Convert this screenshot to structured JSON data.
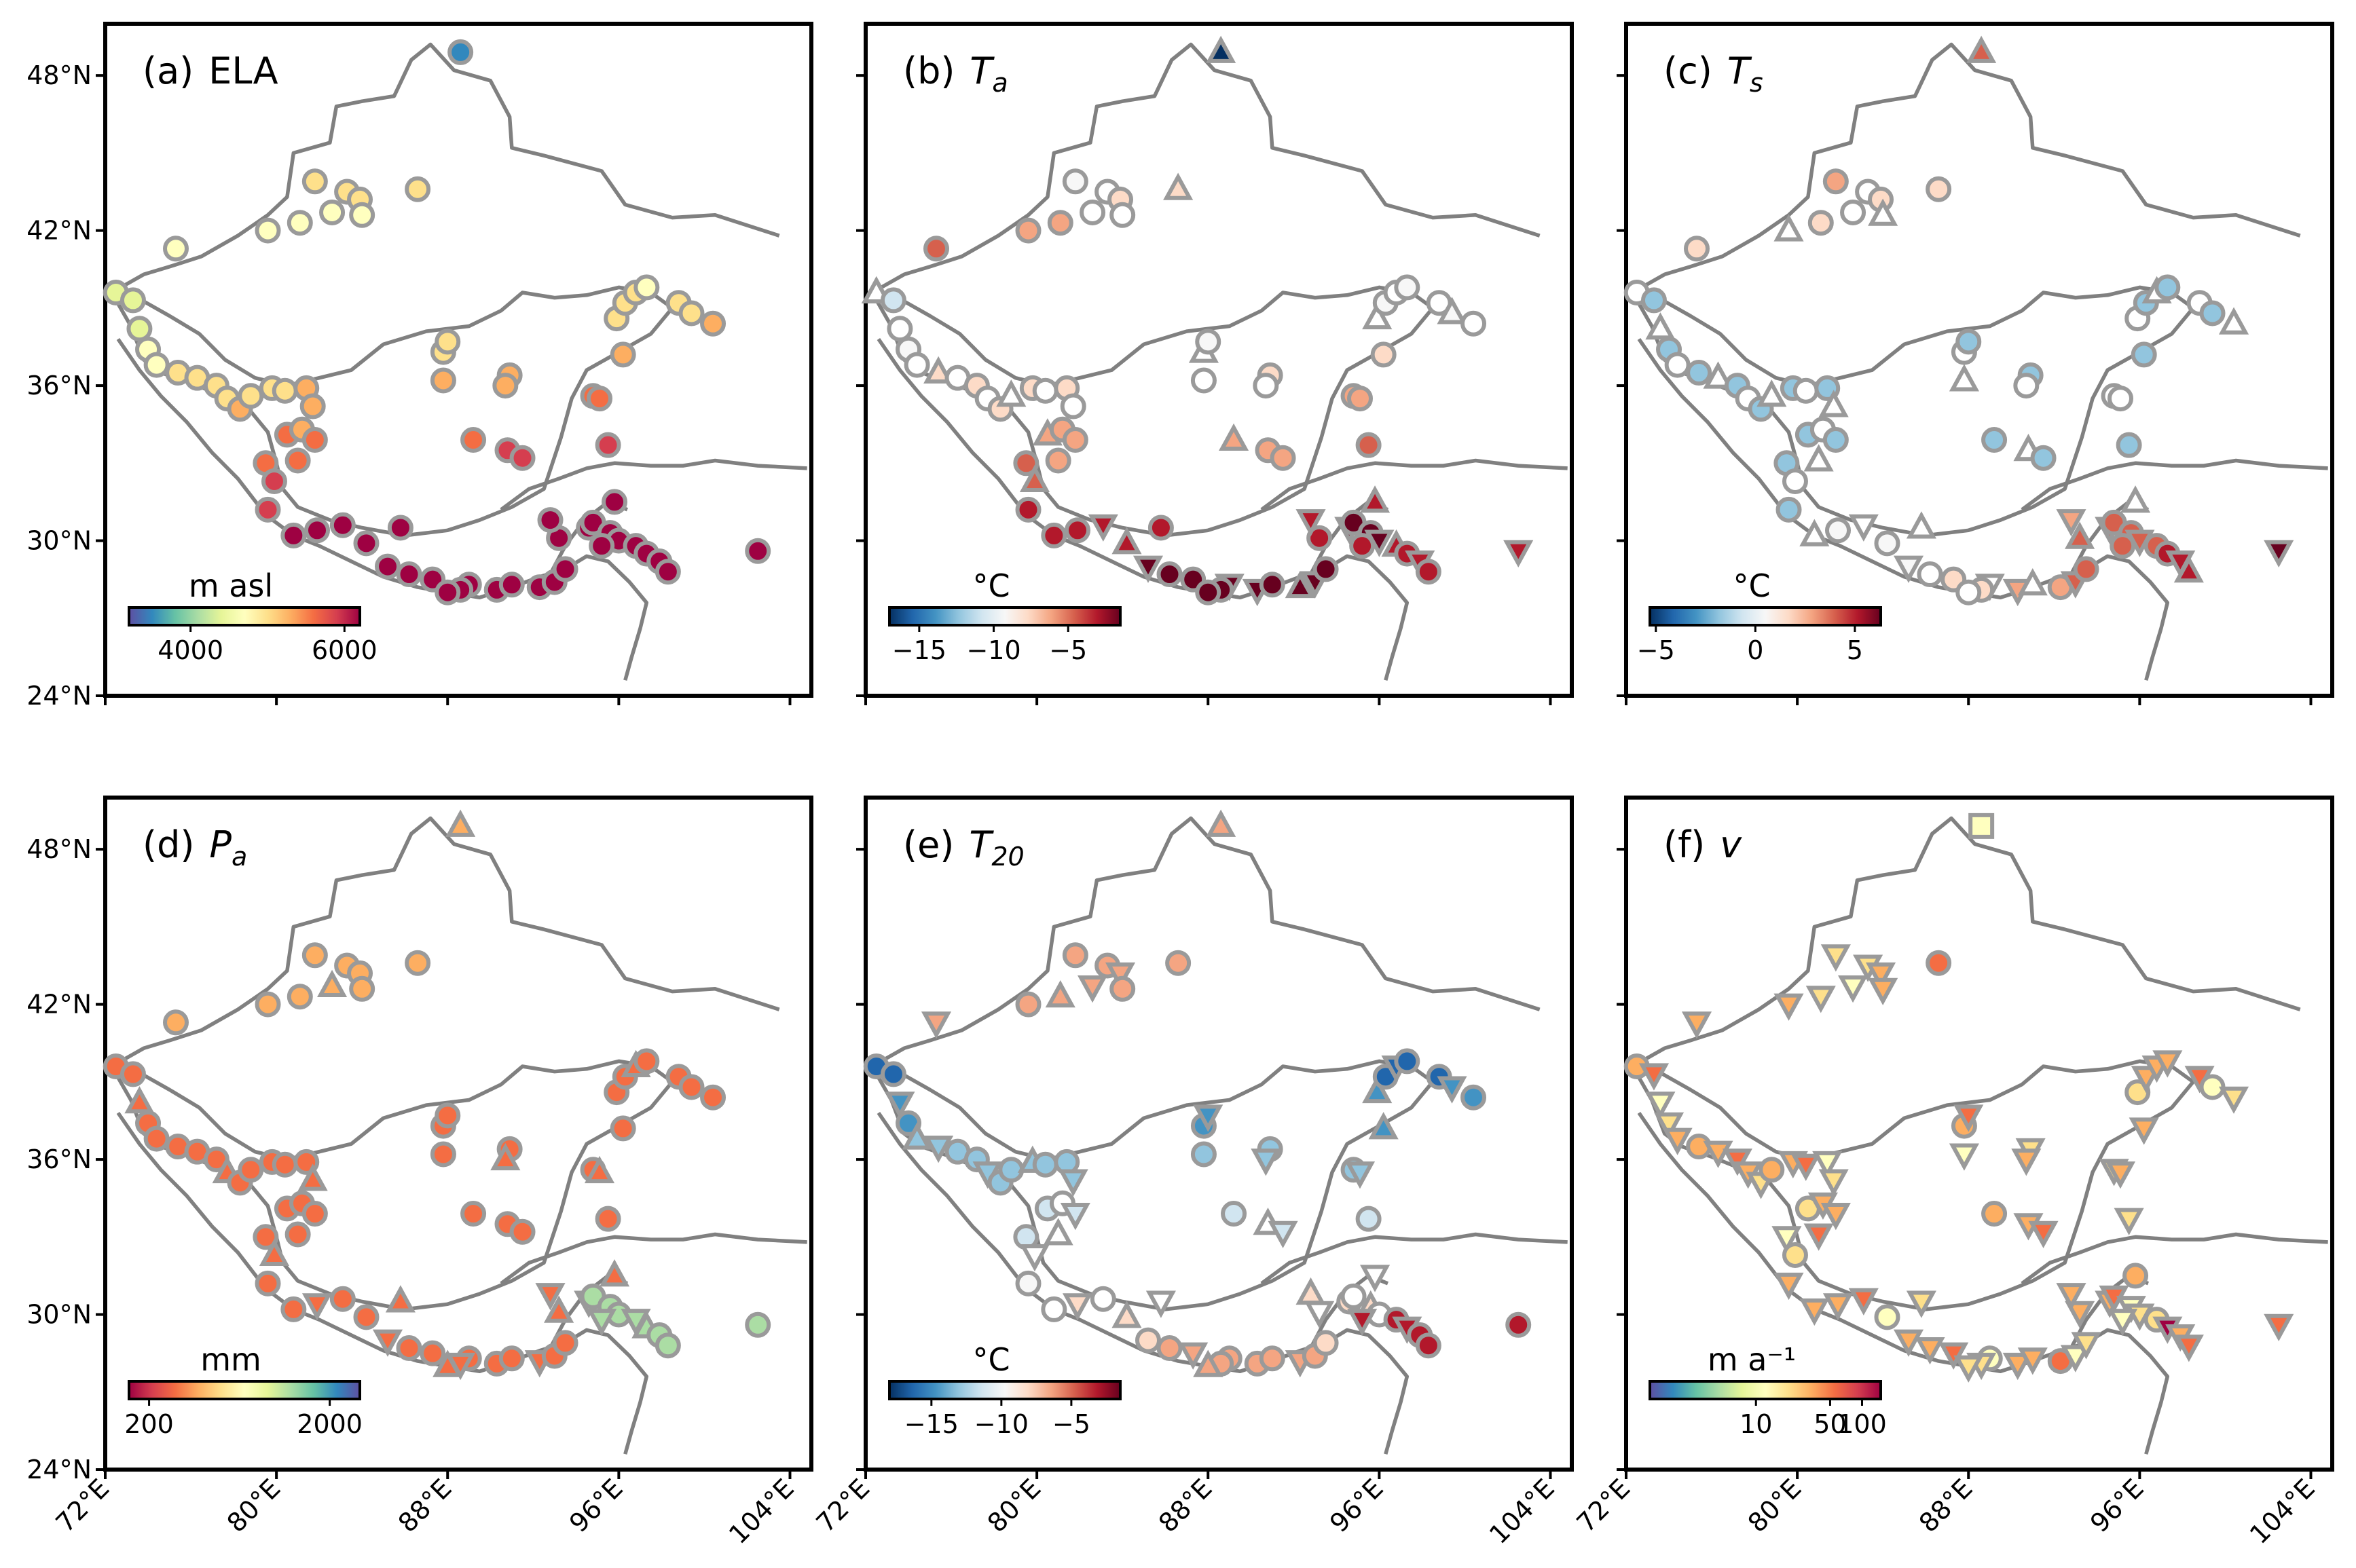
{
  "figure": {
    "x_ticks": [
      "72°E",
      "80°E",
      "88°E",
      "96°E",
      "104°E"
    ],
    "y_ticks": [
      "48°N",
      "42°N",
      "36°N",
      "30°N",
      "24°N"
    ],
    "x_values": [
      72,
      80,
      88,
      96,
      104
    ],
    "y_values": [
      48,
      42,
      36,
      30,
      24
    ],
    "lon_range": [
      72,
      105
    ],
    "lat_range": [
      24,
      50
    ]
  },
  "panels": [
    {
      "id": "a",
      "label": "(a)",
      "title": "ELA",
      "italic": false,
      "unit": "m asl",
      "ticks": [
        "4000",
        "6000"
      ],
      "tick_values": [
        4000,
        6000
      ],
      "range": [
        3200,
        6200
      ],
      "cmap": "spectral_r",
      "markers": "circles"
    },
    {
      "id": "b",
      "label": "(b)",
      "title": "T",
      "sub": "a",
      "italic": true,
      "unit": "°C",
      "ticks": [
        "−15",
        "−10",
        "−5"
      ],
      "tick_values": [
        -15,
        -10,
        -5
      ],
      "range": [
        -17,
        -1.5
      ],
      "cmap": "rdbu_r",
      "markers": "mixed"
    },
    {
      "id": "c",
      "label": "(c)",
      "title": "T",
      "sub": "s",
      "italic": true,
      "unit": "°C",
      "ticks": [
        "−5",
        "0",
        "5"
      ],
      "tick_values": [
        -5,
        0,
        5
      ],
      "range": [
        -5.3,
        6.3
      ],
      "cmap": "rdbu_r",
      "markers": "mixed"
    },
    {
      "id": "d",
      "label": "(d)",
      "title": "P",
      "sub": "a",
      "italic": true,
      "unit": "mm",
      "ticks": [
        "200",
        "2000"
      ],
      "tick_values": [
        200,
        2000
      ],
      "range": [
        0,
        2300
      ],
      "cmap": "spectral",
      "markers": "mixed"
    },
    {
      "id": "e",
      "label": "(e)",
      "title": "T",
      "sub": "20",
      "italic": true,
      "unit": "°C",
      "ticks": [
        "−15",
        "−10",
        "−5"
      ],
      "tick_values": [
        -15,
        -10,
        -5
      ],
      "range": [
        -18,
        -1.5
      ],
      "cmap": "rdbu_r",
      "markers": "mixed"
    },
    {
      "id": "f",
      "label": "(f)",
      "title": "v",
      "italic": true,
      "unit": "m a⁻¹",
      "ticks": [
        "10",
        "50",
        "100"
      ],
      "tick_values": [
        10,
        50,
        100
      ],
      "range": [
        0,
        150
      ],
      "cmap": "spectral_r",
      "markers": "triangles"
    }
  ],
  "colors": {
    "outline": "#808080",
    "frame": "#000000"
  }
}
